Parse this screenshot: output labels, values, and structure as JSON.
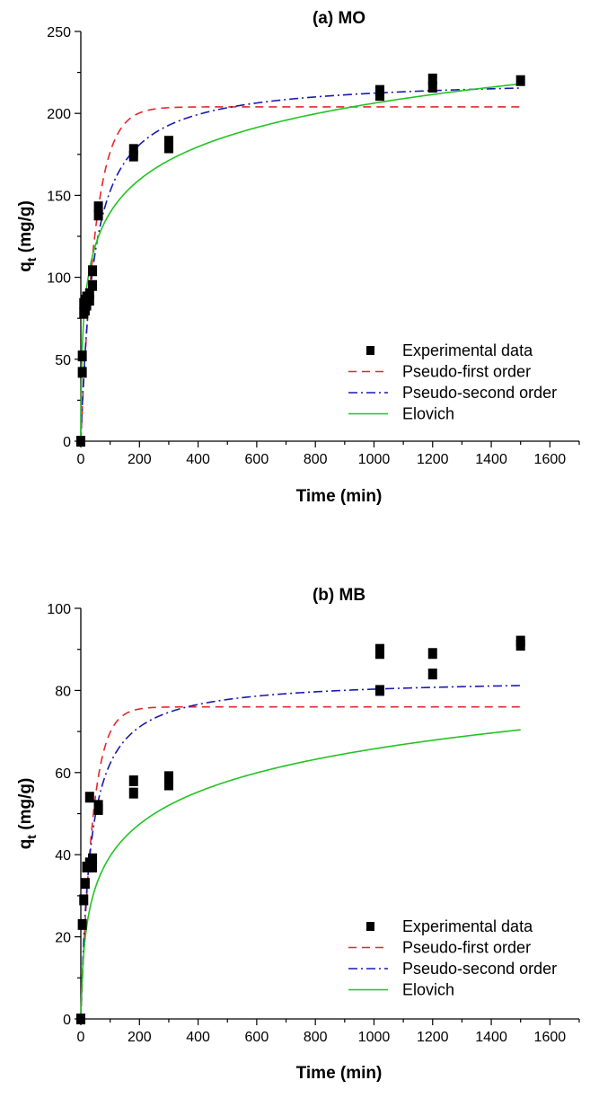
{
  "chart_data": [
    {
      "type": "scatter",
      "title": "(a) MO",
      "xlabel": "Time (min)",
      "ylabel": "q",
      "ylabel_sub": "t",
      "ylabel_unit": " (mg/g)",
      "xlim": [
        0,
        1700
      ],
      "ylim": [
        0,
        250
      ],
      "xticks": [
        0,
        200,
        400,
        600,
        800,
        1000,
        1200,
        1400,
        1600
      ],
      "yticks": [
        0,
        50,
        100,
        150,
        200,
        250
      ],
      "legend_position": "bottom-right",
      "series": [
        {
          "name": "Experimental data",
          "kind": "points",
          "color": "#000000",
          "x": [
            0,
            5,
            5,
            10,
            10,
            15,
            15,
            20,
            20,
            30,
            30,
            40,
            40,
            60,
            60,
            180,
            180,
            300,
            300,
            1020,
            1020,
            1200,
            1200,
            1500
          ],
          "y": [
            0,
            42,
            52,
            78,
            84,
            80,
            86,
            88,
            83,
            90,
            86,
            104,
            95,
            143,
            138,
            178,
            174,
            183,
            179,
            214,
            211,
            221,
            216,
            220
          ]
        },
        {
          "name": "Pseudo-first order",
          "kind": "curve",
          "color": "#e8262a",
          "dash": "9,6",
          "model": "pfo",
          "params": {
            "qe": 204,
            "k1": 0.02
          },
          "x_end": 1500
        },
        {
          "name": "Pseudo-second order",
          "kind": "curve",
          "color": "#1a1ab0",
          "dash": "10,4,2,4",
          "model": "pso",
          "params": {
            "qe": 222,
            "k2": 9.9e-05
          },
          "x_end": 1500
        },
        {
          "name": "Elovich",
          "kind": "curve",
          "color": "#22c422",
          "dash": "",
          "model": "elovich",
          "params": {
            "a": 35,
            "b": 0.0344
          },
          "x_end": 1500
        }
      ]
    },
    {
      "type": "scatter",
      "title": "(b) MB",
      "xlabel": "Time (min)",
      "ylabel": "q",
      "ylabel_sub": "t",
      "ylabel_unit": " (mg/g)",
      "xlim": [
        0,
        1700
      ],
      "ylim": [
        0,
        100
      ],
      "xticks": [
        0,
        200,
        400,
        600,
        800,
        1000,
        1200,
        1400,
        1600
      ],
      "yticks": [
        0,
        20,
        40,
        60,
        80,
        100
      ],
      "legend_position": "bottom-right",
      "series": [
        {
          "name": "Experimental data",
          "kind": "points",
          "color": "#000000",
          "x": [
            0,
            5,
            10,
            15,
            20,
            30,
            30,
            40,
            40,
            60,
            60,
            180,
            180,
            300,
            300,
            1020,
            1020,
            1020,
            1200,
            1200,
            1500,
            1500
          ],
          "y": [
            0,
            23,
            29,
            33,
            37,
            54,
            38,
            39,
            37,
            52,
            51,
            58,
            55,
            59,
            57,
            90,
            89,
            80,
            89,
            84,
            92,
            91
          ]
        },
        {
          "name": "Pseudo-first order",
          "kind": "curve",
          "color": "#e8262a",
          "dash": "9,6",
          "model": "pfo",
          "params": {
            "qe": 76,
            "k1": 0.025
          },
          "x_end": 1500
        },
        {
          "name": "Pseudo-second order",
          "kind": "curve",
          "color": "#1a1ab0",
          "dash": "10,4,2,4",
          "model": "pso",
          "params": {
            "qe": 83,
            "k2": 0.00036
          },
          "x_end": 1500
        },
        {
          "name": "Elovich",
          "kind": "curve",
          "color": "#22c422",
          "dash": "",
          "model": "elovich",
          "params": {
            "a": 3.5,
            "b": 0.087
          },
          "x_end": 1500
        }
      ]
    }
  ]
}
